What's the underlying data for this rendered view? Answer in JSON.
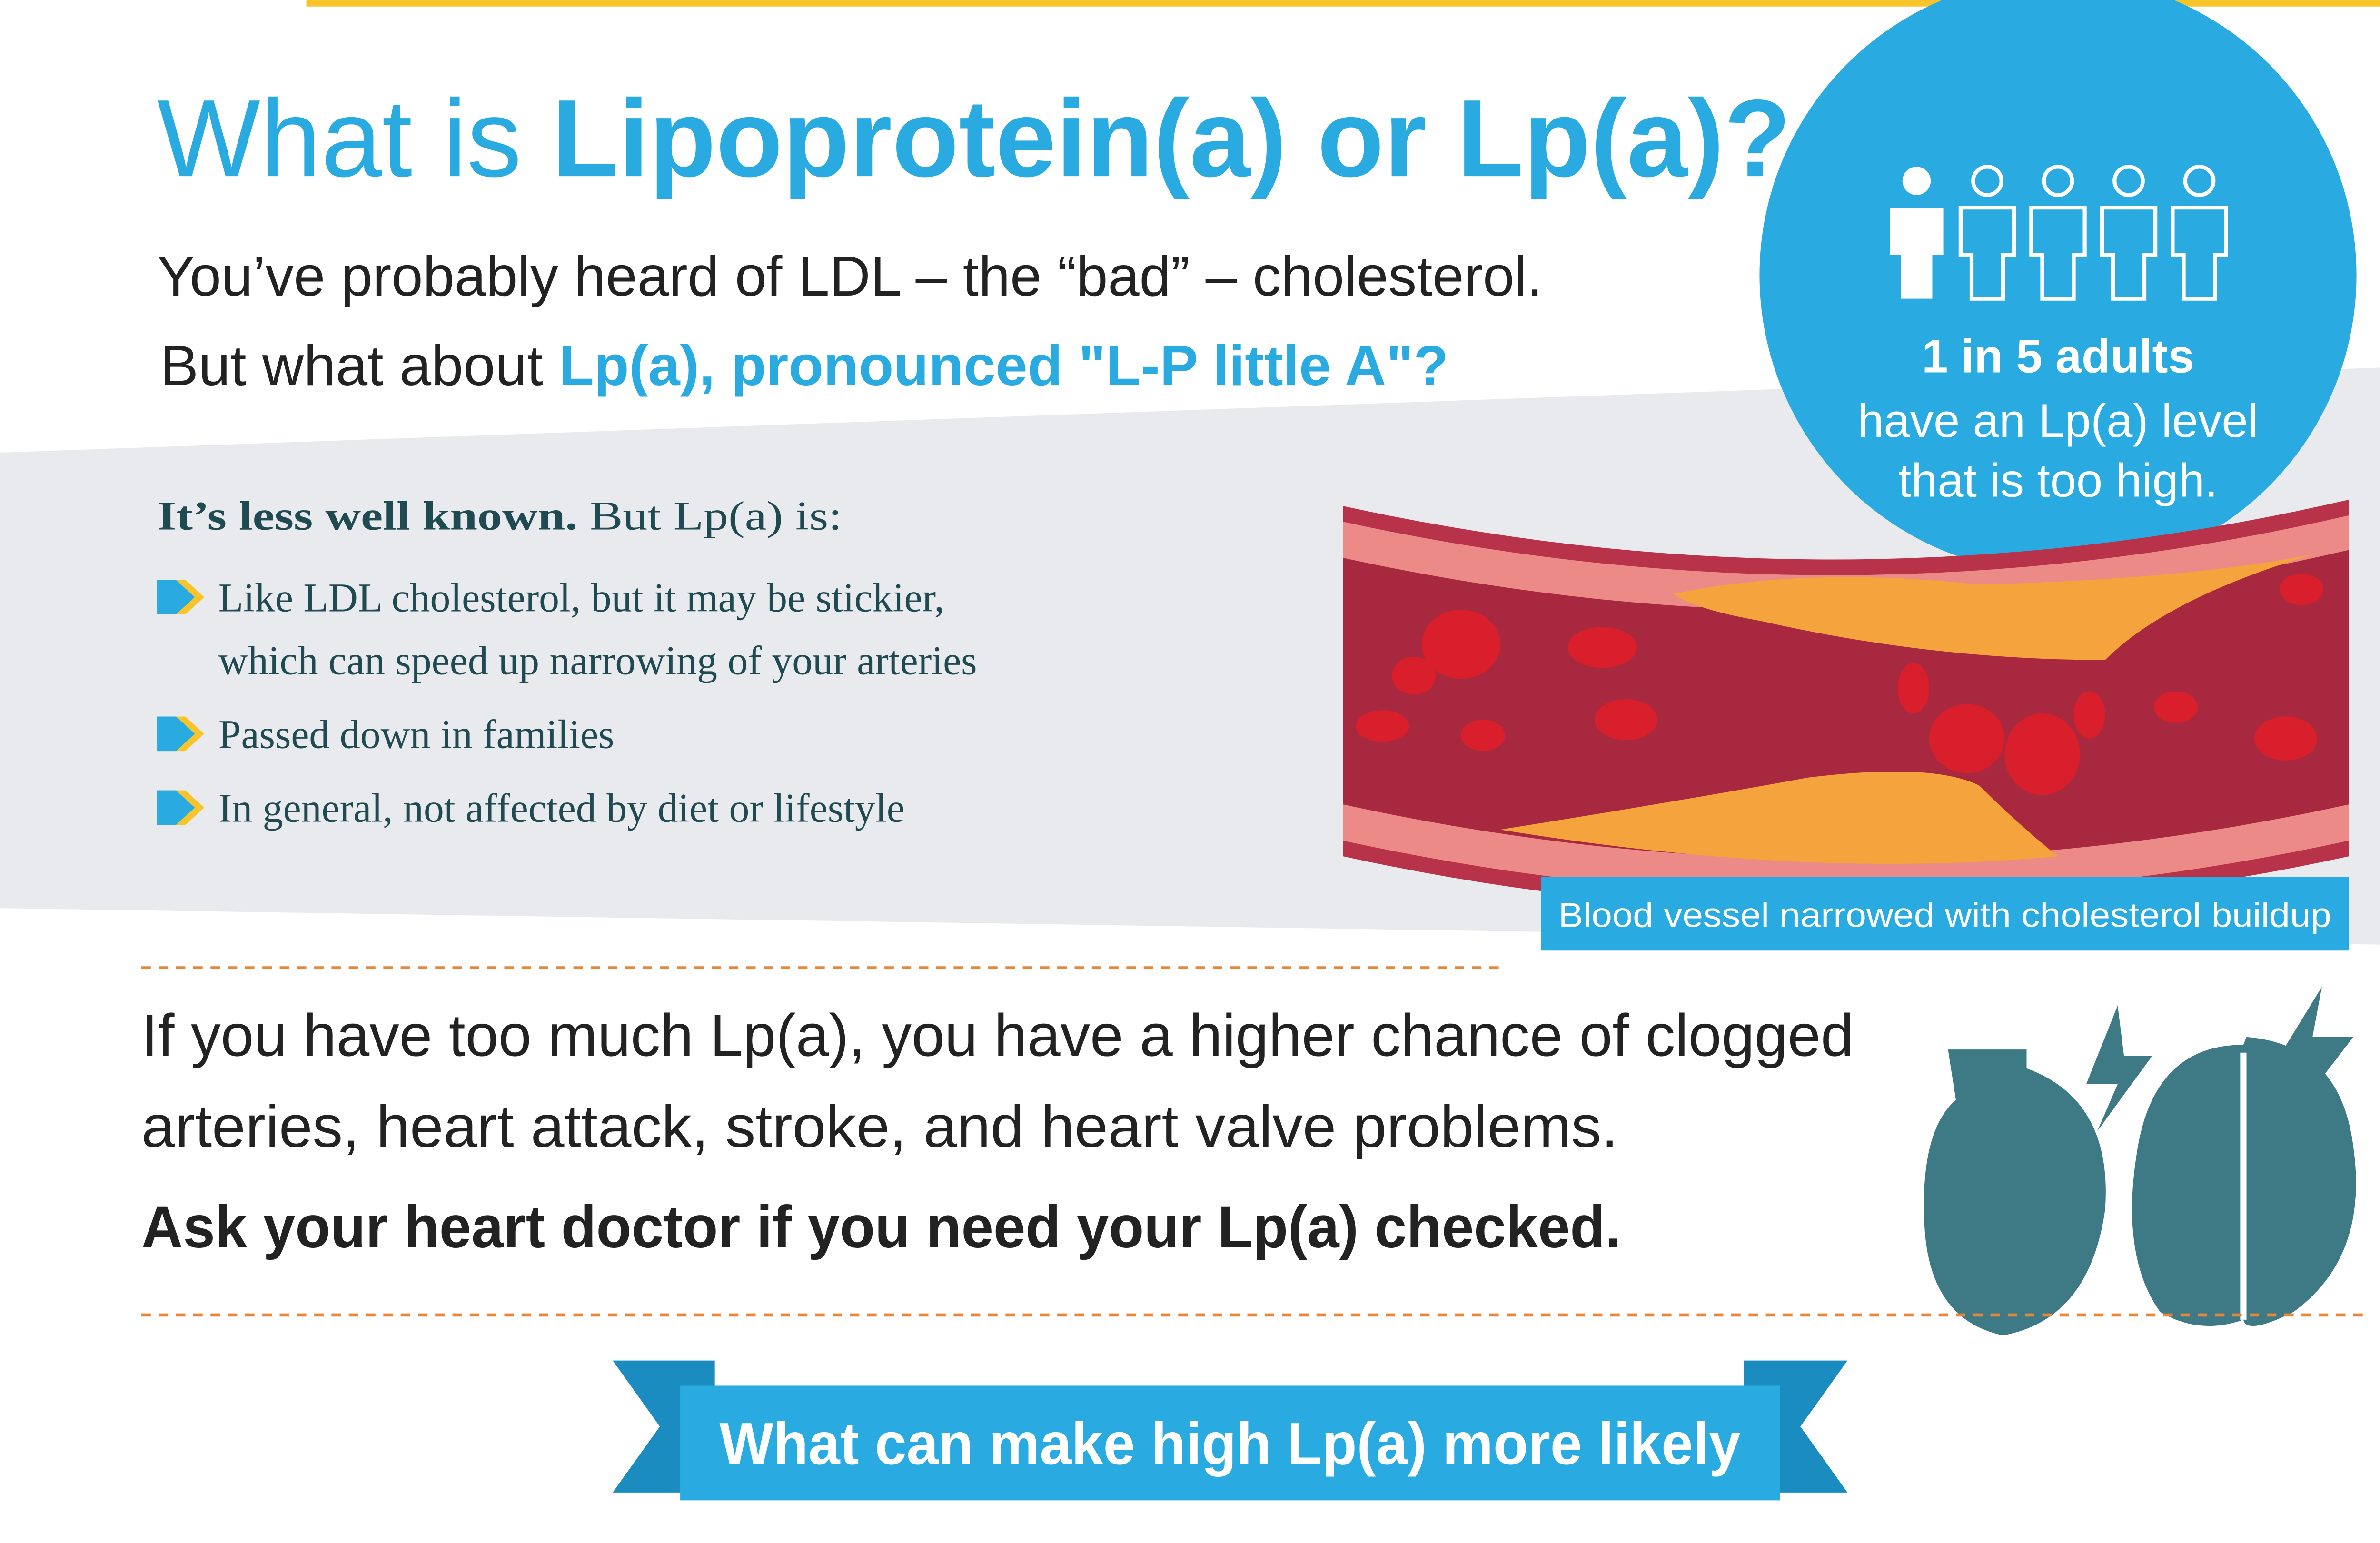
{
  "header": {
    "title_lead": "What is",
    "title_emphasis": "Lipoprotein(a) or Lp(a)?"
  },
  "intro": {
    "line1": "You’ve probably heard of LDL – the “bad” – cholesterol.",
    "line2_lead": "But what about",
    "line2_emphasis": "Lp(a), pronounced \"L-P little A\"?"
  },
  "facts": {
    "lead_bold": "It’s less well known.",
    "lead_rest": "But Lp(a) is:",
    "items": [
      [
        "Like LDL cholesterol, but it may be stickier,",
        "which can speed up narrowing of your arteries"
      ],
      [
        "Passed down in families"
      ],
      [
        "In general, not affected by diet or lifestyle"
      ]
    ]
  },
  "stat": {
    "highlight": "1 in 5 adults",
    "lines": [
      "have an Lp(a) level",
      "that is too high."
    ]
  },
  "illustration": {
    "caption": "Blood vessel narrowed with cholesterol buildup"
  },
  "risk": {
    "lines": [
      "If you have too much Lp(a), you have a higher chance of clogged",
      "arteries, heart attack, stroke, and heart valve problems."
    ],
    "call_to_action": "Ask your heart doctor if you need your Lp(a) checked."
  },
  "banner": {
    "title": "What can make high Lp(a) more likely"
  }
}
